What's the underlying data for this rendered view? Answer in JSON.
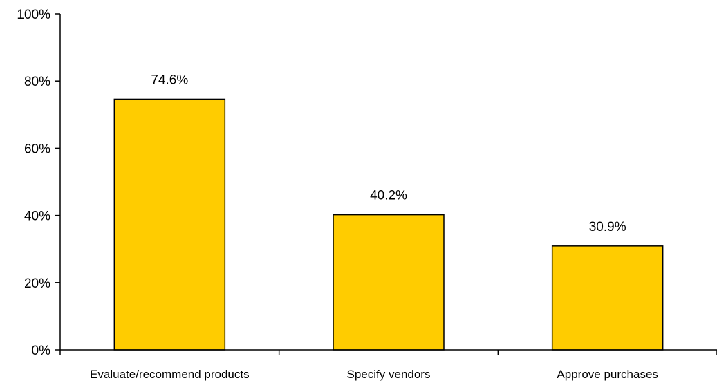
{
  "chart_data": {
    "type": "bar",
    "categories": [
      "Evaluate/recommend products",
      "Specify vendors",
      "Approve purchases"
    ],
    "values": [
      74.6,
      40.2,
      30.9
    ],
    "value_labels": [
      "74.6%",
      "40.2%",
      "30.9%"
    ],
    "ylim": [
      0,
      100
    ],
    "y_ticks": [
      0,
      20,
      40,
      60,
      80,
      100
    ],
    "y_tick_labels": [
      "0%",
      "20%",
      "40%",
      "60%",
      "80%",
      "100%"
    ],
    "title": "",
    "xlabel": "",
    "ylabel": "",
    "grid": false,
    "legend": "none",
    "bar_color": "#FFCC00",
    "bar_edge_color": "#000000"
  }
}
